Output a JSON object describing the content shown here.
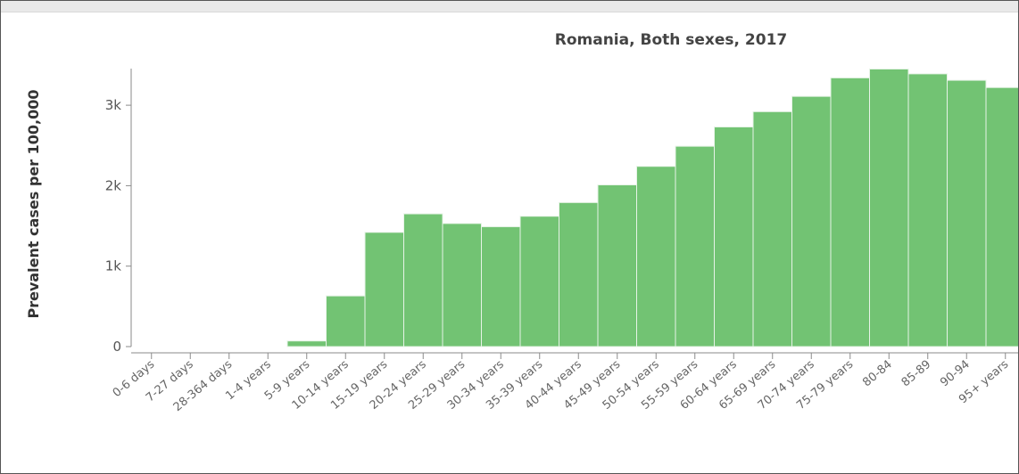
{
  "chart_data": {
    "type": "bar",
    "title": "Romania, Both sexes, 2017",
    "ylabel": "Prevalent cases per 100,000",
    "xlabel": "",
    "ylim": [
      0,
      3500
    ],
    "yticks": [
      {
        "value": 0,
        "label": "0"
      },
      {
        "value": 1000,
        "label": "1k"
      },
      {
        "value": 2000,
        "label": "2k"
      },
      {
        "value": 3000,
        "label": "3k"
      }
    ],
    "categories": [
      "0-6 days",
      "7-27 days",
      "28-364 days",
      "1-4 years",
      "5-9 years",
      "10-14 years",
      "15-19 years",
      "20-24 years",
      "25-29 years",
      "30-34 years",
      "35-39 years",
      "40-44 years",
      "45-49 years",
      "50-54 years",
      "55-59 years",
      "60-64 years",
      "65-69 years",
      "70-74 years",
      "75-79 years",
      "80-84",
      "85-89",
      "90-94",
      "95+ years"
    ],
    "values": [
      0,
      0,
      0,
      0,
      70,
      630,
      1420,
      1650,
      1530,
      1490,
      1620,
      1790,
      2010,
      2240,
      2490,
      2730,
      2920,
      3110,
      3340,
      3450,
      3390,
      3310,
      3220
    ],
    "grid": false,
    "legend": "none",
    "colors": {
      "bar": "#72c373",
      "bar_separator": "#e7f3e7",
      "axis": "#8a8a8a"
    }
  }
}
